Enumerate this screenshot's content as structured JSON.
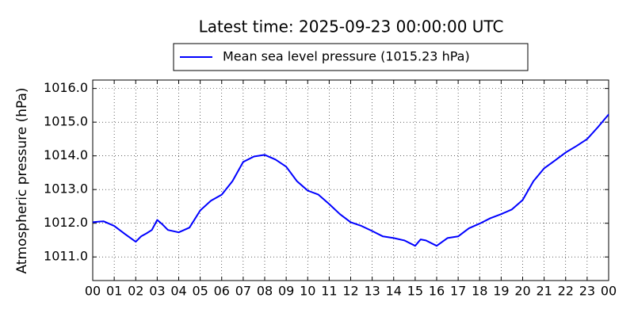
{
  "chart_data": {
    "type": "line",
    "title": "Latest time: 2025-09-23 00:00:00 UTC",
    "y_label": "Atmospheric pressure (hPa)",
    "legend": "upper center",
    "grid": true,
    "x": [
      0,
      0.5,
      1,
      1.5,
      2,
      2.25,
      2.5,
      2.75,
      3,
      3.25,
      3.5,
      4,
      4.5,
      5,
      5.5,
      6,
      6.5,
      7,
      7.5,
      8,
      8.5,
      9,
      9.5,
      10,
      10.5,
      11,
      11.5,
      12,
      12.5,
      13,
      13.5,
      14,
      14.5,
      15,
      15.25,
      15.5,
      16,
      16.5,
      17,
      17.5,
      18,
      18.5,
      19,
      19.5,
      20,
      20.5,
      21,
      21.5,
      22,
      22.5,
      23,
      23.5,
      24
    ],
    "series": [
      {
        "name": "Mean sea level pressure (1015.23 hPa)",
        "color": "#0000ff",
        "values": [
          1012.03,
          1012.06,
          1011.92,
          1011.68,
          1011.45,
          1011.61,
          1011.7,
          1011.8,
          1012.1,
          1011.96,
          1011.8,
          1011.73,
          1011.87,
          1012.38,
          1012.67,
          1012.85,
          1013.25,
          1013.82,
          1013.98,
          1014.03,
          1013.89,
          1013.68,
          1013.25,
          1012.97,
          1012.85,
          1012.57,
          1012.27,
          1012.03,
          1011.92,
          1011.77,
          1011.61,
          1011.56,
          1011.49,
          1011.33,
          1011.52,
          1011.49,
          1011.33,
          1011.56,
          1011.61,
          1011.85,
          1011.99,
          1012.15,
          1012.27,
          1012.41,
          1012.69,
          1013.25,
          1013.63,
          1013.86,
          1014.1,
          1014.29,
          1014.5,
          1014.85,
          1015.23
        ]
      }
    ],
    "xlim": [
      0,
      24
    ],
    "xticks": [
      {
        "value": 0,
        "label": "00"
      },
      {
        "value": 1,
        "label": "01"
      },
      {
        "value": 2,
        "label": "02"
      },
      {
        "value": 3,
        "label": "03"
      },
      {
        "value": 4,
        "label": "04"
      },
      {
        "value": 5,
        "label": "05"
      },
      {
        "value": 6,
        "label": "06"
      },
      {
        "value": 7,
        "label": "07"
      },
      {
        "value": 8,
        "label": "08"
      },
      {
        "value": 9,
        "label": "09"
      },
      {
        "value": 10,
        "label": "10"
      },
      {
        "value": 11,
        "label": "11"
      },
      {
        "value": 12,
        "label": "12"
      },
      {
        "value": 13,
        "label": "13"
      },
      {
        "value": 14,
        "label": "14"
      },
      {
        "value": 15,
        "label": "15"
      },
      {
        "value": 16,
        "label": "16"
      },
      {
        "value": 17,
        "label": "17"
      },
      {
        "value": 18,
        "label": "18"
      },
      {
        "value": 19,
        "label": "19"
      },
      {
        "value": 20,
        "label": "20"
      },
      {
        "value": 21,
        "label": "21"
      },
      {
        "value": 22,
        "label": "22"
      },
      {
        "value": 23,
        "label": "23"
      },
      {
        "value": 24,
        "label": "00"
      }
    ],
    "ylim": [
      1010.3,
      1016.25
    ],
    "yticks": [
      {
        "value": 1011,
        "label": "1011.0"
      },
      {
        "value": 1012,
        "label": "1012.0"
      },
      {
        "value": 1013,
        "label": "1013.0"
      },
      {
        "value": 1014,
        "label": "1014.0"
      },
      {
        "value": 1015,
        "label": "1015.0"
      },
      {
        "value": 1016,
        "label": "1016.0"
      }
    ]
  }
}
